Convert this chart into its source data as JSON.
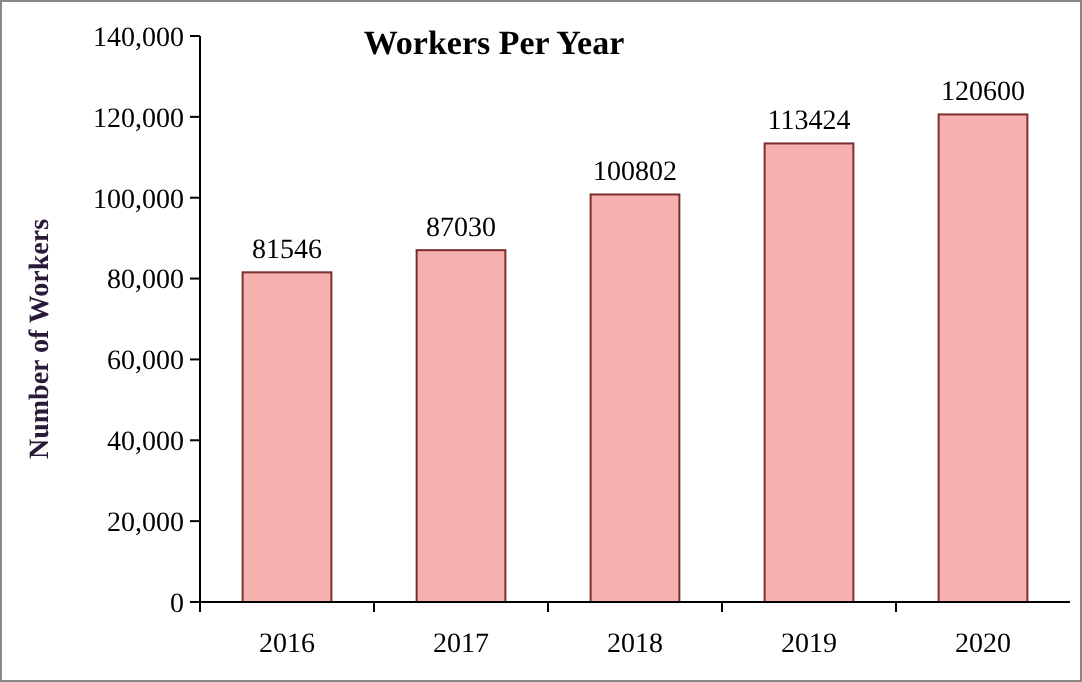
{
  "chart_data": {
    "type": "bar",
    "title": "Workers Per Year",
    "ylabel": "Number of Workers",
    "categories": [
      "2016",
      "2017",
      "2018",
      "2019",
      "2020"
    ],
    "values": [
      81546,
      87030,
      100802,
      113424,
      120600
    ],
    "color": "#f4b1ad",
    "ylim": [
      0,
      140000
    ],
    "yticks": [
      {
        "value": 0,
        "label": "0"
      },
      {
        "value": 20000,
        "label": "20,000"
      },
      {
        "value": 40000,
        "label": "40,000"
      },
      {
        "value": 60000,
        "label": "60,000"
      },
      {
        "value": 80000,
        "label": "80,000"
      },
      {
        "value": 100000,
        "label": "100,000"
      },
      {
        "value": 120000,
        "label": "120,000"
      },
      {
        "value": 140000,
        "label": "140,000"
      }
    ],
    "data_labels": true
  }
}
